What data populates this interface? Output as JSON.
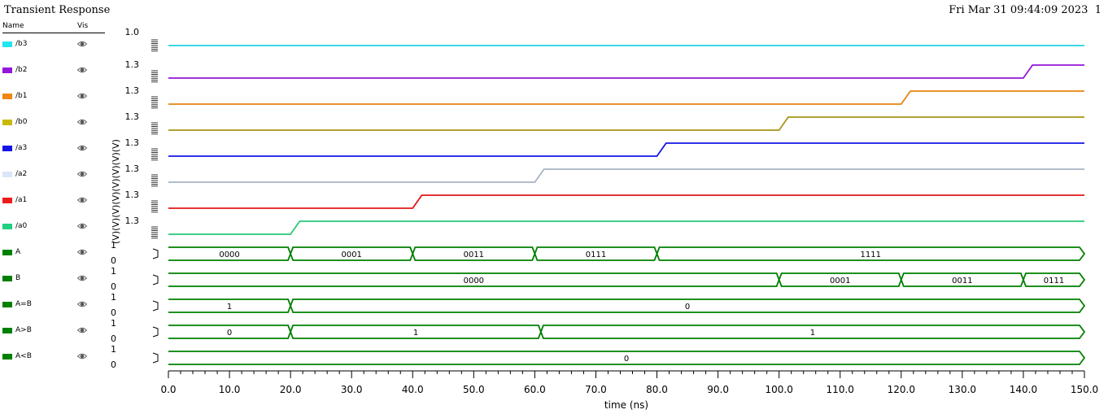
{
  "header": {
    "title": "Transient Response",
    "datetime": "Fri Mar 31 09:44:09 2023",
    "page_number": "1"
  },
  "signal_list": {
    "name_header": "Name",
    "vis_header": "Vis",
    "visibility_icon": "eye-icon",
    "items": [
      {
        "label": "/b3",
        "color": "#21e6f0"
      },
      {
        "label": "/b2",
        "color": "#9416d8"
      },
      {
        "label": "/b1",
        "color": "#f08613"
      },
      {
        "label": "/b0",
        "color": "#c8b900"
      },
      {
        "label": "/a3",
        "color": "#1515e6"
      },
      {
        "label": "/a2",
        "color": "#dbe6f7"
      },
      {
        "label": "/a1",
        "color": "#ee1b1b"
      },
      {
        "label": "/a0",
        "color": "#20d07f"
      },
      {
        "label": "A",
        "color": "#008000"
      },
      {
        "label": "B",
        "color": "#008000"
      },
      {
        "label": "A=B",
        "color": "#008000"
      },
      {
        "label": "A>B",
        "color": "#008000"
      },
      {
        "label": "A<B",
        "color": "#008000"
      }
    ]
  },
  "chart_data": {
    "type": "line",
    "xlabel": "time (ns)",
    "xlim": [
      0,
      150
    ],
    "x_ticks": [
      "0.0",
      "10.0",
      "20.0",
      "30.0",
      "40.0",
      "50.0",
      "60.0",
      "70.0",
      "80.0",
      "90.0",
      "100.0",
      "110.0",
      "120.0",
      "130.0",
      "140.0",
      "150.0"
    ],
    "analog_unit_label": "(V)",
    "analog": [
      {
        "name": "/b3",
        "color": "#21e6f0",
        "line_color": "#21d4e0",
        "top_tick": "1.0",
        "points": [
          [
            0,
            0
          ],
          [
            150,
            0
          ]
        ]
      },
      {
        "name": "/b2",
        "color": "#9416d8",
        "line_color": "#9416d8",
        "top_tick": "1.3",
        "points": [
          [
            0,
            0
          ],
          [
            140,
            0
          ],
          [
            141.5,
            1.2
          ],
          [
            150,
            1.2
          ]
        ]
      },
      {
        "name": "/b1",
        "color": "#f08613",
        "line_color": "#e8830f",
        "top_tick": "1.3",
        "points": [
          [
            0,
            0
          ],
          [
            120,
            0
          ],
          [
            121.5,
            1.2
          ],
          [
            150,
            1.2
          ]
        ]
      },
      {
        "name": "/b0",
        "color": "#c8b900",
        "line_color": "#a89418",
        "top_tick": "1.3",
        "points": [
          [
            0,
            0
          ],
          [
            100,
            0
          ],
          [
            101.5,
            1.2
          ],
          [
            150,
            1.2
          ]
        ]
      },
      {
        "name": "/a3",
        "color": "#1515e6",
        "line_color": "#1515e6",
        "top_tick": "1.3",
        "points": [
          [
            0,
            0
          ],
          [
            80,
            0
          ],
          [
            81.5,
            1.2
          ],
          [
            150,
            1.2
          ]
        ]
      },
      {
        "name": "/a2",
        "color": "#dbe6f7",
        "line_color": "#a8b4c4",
        "top_tick": "1.3",
        "points": [
          [
            0,
            0
          ],
          [
            60,
            0
          ],
          [
            61.5,
            1.2
          ],
          [
            150,
            1.2
          ]
        ]
      },
      {
        "name": "/a1",
        "color": "#ee1b1b",
        "line_color": "#e01818",
        "top_tick": "1.3",
        "points": [
          [
            0,
            0
          ],
          [
            40,
            0
          ],
          [
            41.5,
            1.2
          ],
          [
            150,
            1.2
          ]
        ]
      },
      {
        "name": "/a0",
        "color": "#20d07f",
        "line_color": "#28c878",
        "top_tick": "1.3",
        "points": [
          [
            0,
            0
          ],
          [
            20,
            0
          ],
          [
            21.5,
            1.2
          ],
          [
            150,
            1.2
          ]
        ]
      }
    ],
    "digital": [
      {
        "name": "A",
        "ticks": [
          "1",
          "0"
        ],
        "segments": [
          {
            "start": 0,
            "end": 20,
            "value": "0000"
          },
          {
            "start": 20,
            "end": 40,
            "value": "0001"
          },
          {
            "start": 40,
            "end": 60,
            "value": "0011"
          },
          {
            "start": 60,
            "end": 80,
            "value": "0111"
          },
          {
            "start": 80,
            "end": 150,
            "value": "1111"
          }
        ]
      },
      {
        "name": "B",
        "ticks": [
          "1",
          "0"
        ],
        "segments": [
          {
            "start": 0,
            "end": 100,
            "value": "0000"
          },
          {
            "start": 100,
            "end": 120,
            "value": "0001"
          },
          {
            "start": 120,
            "end": 140,
            "value": "0011"
          },
          {
            "start": 140,
            "end": 150,
            "value": "0111"
          }
        ]
      },
      {
        "name": "A=B",
        "ticks": [
          "1",
          "0"
        ],
        "segments": [
          {
            "start": 0,
            "end": 20,
            "value": "1"
          },
          {
            "start": 20,
            "end": 150,
            "value": "0"
          }
        ]
      },
      {
        "name": "A>B",
        "ticks": [
          "1",
          "0"
        ],
        "segments": [
          {
            "start": 0,
            "end": 20,
            "value": "0"
          },
          {
            "start": 20,
            "end": 61,
            "value": "1"
          },
          {
            "start": 61,
            "end": 150,
            "value": "1"
          }
        ]
      },
      {
        "name": "A<B",
        "ticks": [
          "1",
          "0"
        ],
        "segments": [
          {
            "start": 0,
            "end": 150,
            "value": "0"
          }
        ]
      }
    ]
  }
}
